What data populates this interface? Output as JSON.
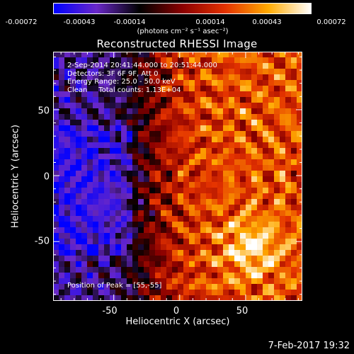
{
  "chart_data": {
    "type": "heatmap",
    "title": "Reconstructed RHESSI Image",
    "xlabel": "Heliocentric X (arcsec)",
    "ylabel": "Heliocentric Y (arcsec)",
    "xlim": [
      -96,
      93
    ],
    "ylim": [
      -95,
      94
    ],
    "x_ticks": [
      -50,
      0,
      50
    ],
    "y_ticks": [
      -50,
      0,
      50
    ],
    "colorbar": {
      "tick_labels": [
        "-0.00072",
        "-0.00043",
        "-0.00014",
        "0.00014",
        "0.00043",
        "0.00072"
      ],
      "tick_values": [
        -0.00072,
        -0.00043,
        -0.00014,
        0.00014,
        0.00043,
        0.00072
      ],
      "range": [
        -0.00072,
        0.00072
      ],
      "unit_label": "(photons cm⁻² s⁻¹ asec⁻²)",
      "colors": [
        "#0000ff",
        "#6a28c8",
        "#000000",
        "#8b0000",
        "#e43200",
        "#ffaa00",
        "#ffffff"
      ]
    },
    "annotations": [
      "2-Sep-2014 20:41:44.000 to 20:51:44.000",
      "Detectors: 3F 6F 9F, Att 0",
      "Energy Range: 25.0 - 50.0 keV",
      "Clean     Total counts: 1.13E+04"
    ],
    "peak_label": "Position of Peak = [55,-55]",
    "peak_position": [
      55,
      -55
    ]
  },
  "footer": {
    "timestamp": "7-Feb-2017 19:32"
  }
}
